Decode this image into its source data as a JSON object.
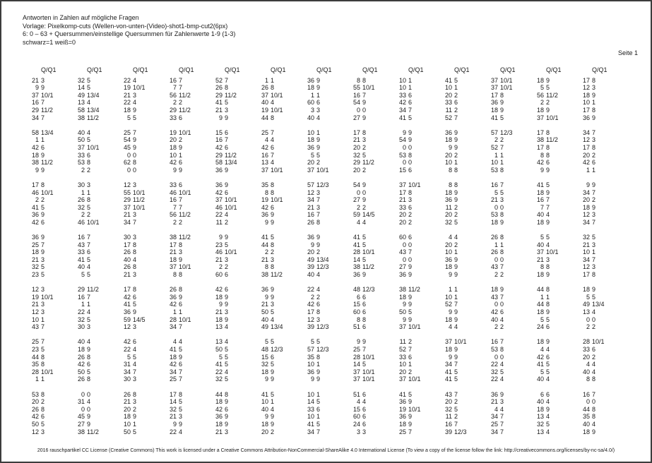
{
  "colors": {
    "text": "#1a1a1a",
    "background": "#ffffff",
    "border": "#3c3c3c"
  },
  "page": {
    "header_lines": [
      "Antworten in Zahlen auf mögliche Fragen",
      "Vorlage: Pixelkomp-cuts (Wellen-von-unten-(Video)-shot1-bmp-cut2(6px)",
      "6: 0 – 63 + Quersummen/einstellige Quersummen für Zahlenwerte 1-9 (1-3)",
      "schwarz=1 weiß=0"
    ],
    "page_label": "Seite 1",
    "footer": "2016 rauschpartikel CC License (Creative Commons) This work is licensed under a Creative Commons Attribution-NonCommercial-ShareAlike 4.0 International License (To view a copy of the license follow the link: http://creativecommons.org/licenses/by-nc-sa/4.0/)"
  },
  "table": {
    "column_header": "Q/Q1",
    "num_columns": 13,
    "groups": [
      [
        [
          "21 3",
          "32 5",
          "22 4",
          "16 7",
          "52 7",
          "1 1",
          "36 9",
          "8 8",
          "10 1",
          "41 5",
          "37 10/1",
          "18 9",
          "17 8"
        ],
        [
          "9 9",
          "14 5",
          "19 10/1",
          "7 7",
          "26 8",
          "26 8",
          "18 9",
          "55 10/1",
          "10 1",
          "10 1",
          "37 10/1",
          "5 5",
          "12 3"
        ],
        [
          "37 10/1",
          "49 13/4",
          "21 3",
          "56 11/2",
          "29 11/2",
          "37 10/1",
          "1 1",
          "16 7",
          "33 6",
          "20 2",
          "17 8",
          "56 11/2",
          "18 9"
        ],
        [
          "16 7",
          "13 4",
          "22 4",
          "2 2",
          "41 5",
          "40 4",
          "60 6",
          "54 9",
          "42 6",
          "33 6",
          "36 9",
          "2 2",
          "10 1"
        ],
        [
          "29 11/2",
          "58 13/4",
          "18 9",
          "29 11/2",
          "21 3",
          "19 10/1",
          "3 3",
          "0 0",
          "34 7",
          "11 2",
          "18 9",
          "18 9",
          "17 8"
        ],
        [
          "34 7",
          "38 11/2",
          "5 5",
          "33 6",
          "9 9",
          "44 8",
          "40 4",
          "27 9",
          "41 5",
          "52 7",
          "41 5",
          "37 10/1",
          "36 9"
        ]
      ],
      [
        [
          "58 13/4",
          "40 4",
          "25 7",
          "19 10/1",
          "15 6",
          "25 7",
          "10 1",
          "17 8",
          "9 9",
          "36 9",
          "57 12/3",
          "17 8",
          "34 7"
        ],
        [
          "1 1",
          "50 5",
          "54 9",
          "20 2",
          "16 7",
          "4 4",
          "18 9",
          "21 3",
          "54 9",
          "18 9",
          "2 2",
          "38 11/2",
          "12 3"
        ],
        [
          "42 6",
          "37 10/1",
          "45 9",
          "18 9",
          "42 6",
          "42 6",
          "36 9",
          "20 2",
          "0 0",
          "9 9",
          "52 7",
          "17 8",
          "17 8"
        ],
        [
          "18 9",
          "33 6",
          "0 0",
          "10 1",
          "29 11/2",
          "16 7",
          "5 5",
          "32 5",
          "53 8",
          "20 2",
          "1 1",
          "8 8",
          "20 2"
        ],
        [
          "38 11/2",
          "53 8",
          "62 8",
          "42 6",
          "58 13/4",
          "13 4",
          "20 2",
          "29 11/2",
          "0 0",
          "10 1",
          "10 1",
          "42 6",
          "42 6"
        ],
        [
          "9 9",
          "2 2",
          "0 0",
          "9 9",
          "36 9",
          "37 10/1",
          "37 10/1",
          "20 2",
          "15 6",
          "8 8",
          "53 8",
          "9 9",
          "1 1"
        ]
      ],
      [
        [
          "17 8",
          "30 3",
          "12 3",
          "33 6",
          "36 9",
          "35 8",
          "57 12/3",
          "54 9",
          "37 10/1",
          "8 8",
          "16 7",
          "41 5",
          "9 9"
        ],
        [
          "46 10/1",
          "1 1",
          "55 10/1",
          "46 10/1",
          "42 6",
          "8 8",
          "12 3",
          "0 0",
          "17 8",
          "18 9",
          "5 5",
          "18 9",
          "34 7"
        ],
        [
          "2 2",
          "26 8",
          "29 11/2",
          "16 7",
          "37 10/1",
          "19 10/1",
          "34 7",
          "27 9",
          "21 3",
          "36 9",
          "21 3",
          "16 7",
          "20 2"
        ],
        [
          "41 5",
          "32 5",
          "37 10/1",
          "7 7",
          "46 10/1",
          "42 6",
          "21 3",
          "2 2",
          "33 6",
          "11 2",
          "0 0",
          "7 7",
          "18 9"
        ],
        [
          "36 9",
          "2 2",
          "21 3",
          "56 11/2",
          "22 4",
          "36 9",
          "16 7",
          "59 14/5",
          "20 2",
          "20 2",
          "53 8",
          "40 4",
          "12 3"
        ],
        [
          "42 6",
          "46 10/1",
          "34 7",
          "2 2",
          "11 2",
          "9 9",
          "26 8",
          "4 4",
          "20 2",
          "32 5",
          "18 9",
          "18 9",
          "34 7"
        ]
      ],
      [
        [
          "36 9",
          "16 7",
          "30 3",
          "38 11/2",
          "9 9",
          "41 5",
          "36 9",
          "41 5",
          "60 6",
          "4 4",
          "26 8",
          "5 5",
          "32 5"
        ],
        [
          "25 7",
          "43 7",
          "17 8",
          "17 8",
          "23 5",
          "44 8",
          "9 9",
          "41 5",
          "0 0",
          "20 2",
          "1 1",
          "40 4",
          "21 3"
        ],
        [
          "18 9",
          "33 6",
          "26 8",
          "21 3",
          "46 10/1",
          "2 2",
          "20 2",
          "28 10/1",
          "43 7",
          "10 1",
          "26 8",
          "37 10/1",
          "10 1"
        ],
        [
          "21 3",
          "41 5",
          "40 4",
          "18 9",
          "21 3",
          "21 3",
          "49 13/4",
          "14 5",
          "0 0",
          "36 9",
          "0 0",
          "21 3",
          "34 7"
        ],
        [
          "32 5",
          "40 4",
          "26 8",
          "37 10/1",
          "2 2",
          "8 8",
          "39 12/3",
          "38 11/2",
          "27 9",
          "18 9",
          "43 7",
          "8 8",
          "12 3"
        ],
        [
          "23 5",
          "5 5",
          "21 3",
          "8 8",
          "60 6",
          "38 11/2",
          "40 4",
          "36 9",
          "36 9",
          "9 9",
          "2 2",
          "18 9",
          "17 8"
        ]
      ],
      [
        [
          "12 3",
          "29 11/2",
          "17 8",
          "26 8",
          "42 6",
          "36 9",
          "22 4",
          "48 12/3",
          "38 11/2",
          "1 1",
          "18 9",
          "44 8",
          "18 9"
        ],
        [
          "19 10/1",
          "16 7",
          "42 6",
          "36 9",
          "18 9",
          "9 9",
          "2 2",
          "6 6",
          "18 9",
          "10 1",
          "43 7",
          "1 1",
          "5 5"
        ],
        [
          "21 3",
          "1 1",
          "41 5",
          "42 6",
          "9 9",
          "21 3",
          "42 6",
          "15 6",
          "9 9",
          "52 7",
          "0 0",
          "44 8",
          "49 13/4"
        ],
        [
          "12 3",
          "22 4",
          "36 9",
          "1 1",
          "21 3",
          "50 5",
          "17 8",
          "60 6",
          "50 5",
          "9 9",
          "42 6",
          "18 9",
          "13 4"
        ],
        [
          "10 1",
          "32 5",
          "59 14/5",
          "28 10/1",
          "18 9",
          "40 4",
          "12 3",
          "8 8",
          "9 9",
          "18 9",
          "40 4",
          "5 5",
          "0 0"
        ],
        [
          "43 7",
          "30 3",
          "12 3",
          "34 7",
          "13 4",
          "49 13/4",
          "39 12/3",
          "51 6",
          "37 10/1",
          "4 4",
          "2 2",
          "24 6",
          "2 2"
        ]
      ],
      [
        [
          "25 7",
          "40 4",
          "42 6",
          "4 4",
          "13 4",
          "5 5",
          "5 5",
          "9 9",
          "11 2",
          "37 10/1",
          "16 7",
          "18 9",
          "28 10/1"
        ],
        [
          "23 5",
          "18 9",
          "22 4",
          "41 5",
          "50 5",
          "48 12/3",
          "57 12/3",
          "25 7",
          "52 7",
          "18 9",
          "53 8",
          "4 4",
          "33 6"
        ],
        [
          "44 8",
          "26 8",
          "5 5",
          "18 9",
          "5 5",
          "15 6",
          "35 8",
          "28 10/1",
          "33 6",
          "9 9",
          "0 0",
          "42 6",
          "20 2"
        ],
        [
          "35 8",
          "42 6",
          "31 4",
          "42 6",
          "41 5",
          "32 5",
          "10 1",
          "14 5",
          "10 1",
          "34 7",
          "22 4",
          "41 5",
          "4 4"
        ],
        [
          "28 10/1",
          "50 5",
          "34 7",
          "34 7",
          "22 4",
          "18 9",
          "36 9",
          "37 10/1",
          "20 2",
          "41 5",
          "32 5",
          "5 5",
          "40 4"
        ],
        [
          "1 1",
          "26 8",
          "30 3",
          "25 7",
          "32 5",
          "9 9",
          "9 9",
          "37 10/1",
          "37 10/1",
          "41 5",
          "22 4",
          "40 4",
          "8 8"
        ]
      ],
      [
        [
          "53 8",
          "0 0",
          "26 8",
          "17 8",
          "44 8",
          "41 5",
          "10 1",
          "51 6",
          "41 5",
          "43 7",
          "36 9",
          "6 6",
          "16 7"
        ],
        [
          "20 2",
          "31 4",
          "21 3",
          "14 5",
          "18 9",
          "10 1",
          "14 5",
          "4 4",
          "36 9",
          "20 2",
          "21 3",
          "40 4",
          "0 0"
        ],
        [
          "26 8",
          "0 0",
          "20 2",
          "32 5",
          "42 6",
          "40 4",
          "33 6",
          "15 6",
          "19 10/1",
          "32 5",
          "4 4",
          "18 9",
          "44 8"
        ],
        [
          "42 6",
          "45 9",
          "18 9",
          "21 3",
          "36 9",
          "9 9",
          "10 1",
          "60 6",
          "36 9",
          "11 2",
          "34 7",
          "13 4",
          "35 8"
        ],
        [
          "50 5",
          "27 9",
          "10 1",
          "9 9",
          "18 9",
          "18 9",
          "41 5",
          "24 6",
          "18 9",
          "16 7",
          "25 7",
          "32 5",
          "40 4"
        ],
        [
          "12 3",
          "38 11/2",
          "50 5",
          "22 4",
          "21 3",
          "20 2",
          "34 7",
          "3 3",
          "25 7",
          "39 12/3",
          "34 7",
          "13 4",
          "18 9"
        ]
      ]
    ]
  }
}
